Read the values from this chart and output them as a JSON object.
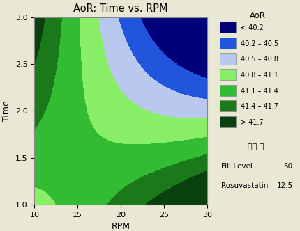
{
  "title": "AoR: Time vs. RPM",
  "xlabel": "RPM",
  "ylabel": "Time",
  "xlim": [
    10,
    30
  ],
  "ylim": [
    1.0,
    3.0
  ],
  "xticks": [
    10,
    15,
    20,
    25,
    30
  ],
  "yticks": [
    1.0,
    1.5,
    2.0,
    2.5,
    3.0
  ],
  "levels": [
    40.2,
    40.5,
    40.8,
    41.1,
    41.4,
    41.7
  ],
  "colors": [
    "#00007a",
    "#2255dd",
    "#b8c8ee",
    "#88ee66",
    "#33bb33",
    "#1a7a1a",
    "#0a4010"
  ],
  "legend_labels": [
    "< 40.2",
    "40.2 – 40.5",
    "40.5 – 40.8",
    "40.8 – 41.1",
    "41.1 – 41.4",
    "41.4 – 41.7",
    "> 41.7"
  ],
  "legend_title": "AoR",
  "fixed_title": "고정 값",
  "fixed_labels": [
    "Fill Level",
    "Rosuvastatin"
  ],
  "fixed_values": [
    "50",
    "12.5"
  ],
  "background_color": "#e8e8d4",
  "plot_bg_color": "#ffffff"
}
